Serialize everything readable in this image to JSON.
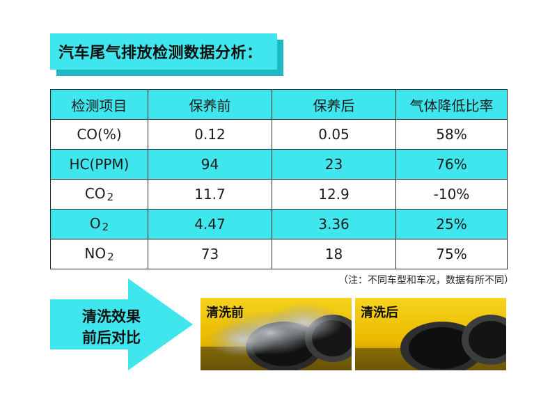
{
  "title": "汽车尾气排放检测数据分析：",
  "table": {
    "headers": [
      "检测项目",
      "保养前",
      "保养后",
      "气体降低比率"
    ],
    "rows": [
      {
        "item": "CO(%)",
        "sub": "",
        "before": "0.12",
        "after": "0.05",
        "rate": "58%"
      },
      {
        "item": "HC(PPM)",
        "sub": "",
        "before": "94",
        "after": "23",
        "rate": "76%"
      },
      {
        "item": "CO",
        "sub": "2",
        "before": "11.7",
        "after": "12.9",
        "rate": "-10%"
      },
      {
        "item": "O",
        "sub": "2",
        "before": "4.47",
        "after": "3.36",
        "rate": "25%"
      },
      {
        "item": "NO",
        "sub": "2",
        "before": "73",
        "after": "18",
        "rate": "75%"
      }
    ]
  },
  "note": "（注：不同车型和车况，数据有所不同）",
  "arrow": {
    "line1": "清洗效果",
    "line2": "前后对比"
  },
  "photos": {
    "before_label": "清洗前",
    "after_label": "清洗后"
  },
  "colors": {
    "accent_cyan": "#3fe6ee",
    "shadow_cyan": "#1fb8c4",
    "photo_yellow": "#f2c40a"
  }
}
